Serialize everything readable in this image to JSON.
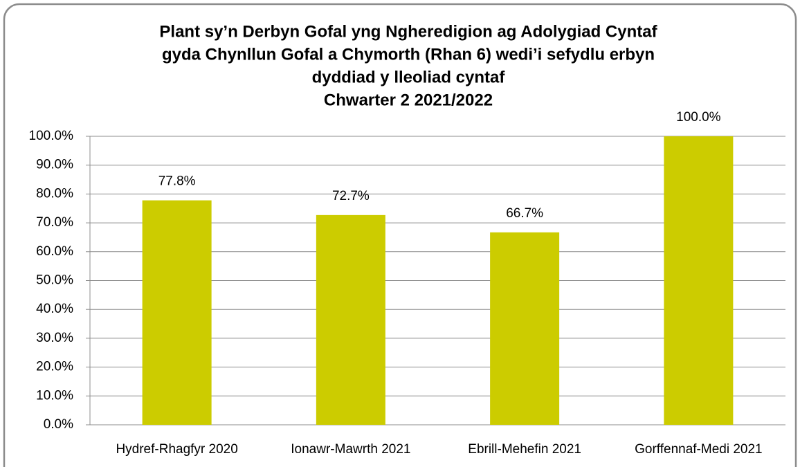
{
  "chart_data": {
    "type": "bar",
    "title": [
      "Plant sy’n Derbyn Gofal yng Ngheredigion ag Adolygiad Cyntaf",
      "gyda Chynllun Gofal a Chymorth (Rhan 6) wedi’i sefydlu erbyn",
      "dyddiad y lleoliad cyntaf",
      "Chwarter 2  2021/2022"
    ],
    "categories": [
      "Hydref-Rhagfyr 2020",
      "Ionawr-Mawrth 2021",
      "Ebrill-Mehefin 2021",
      "Gorffennaf-Medi 2021"
    ],
    "values": [
      77.8,
      72.7,
      66.7,
      100.0
    ],
    "value_labels": [
      "77.8%",
      "72.7%",
      "66.7%",
      "100.0%"
    ],
    "color": "#cccc00",
    "ylim": [
      0,
      100
    ],
    "yticks": [
      {
        "value": 0,
        "label": "0.0%"
      },
      {
        "value": 10,
        "label": "10.0%"
      },
      {
        "value": 20,
        "label": "20.0%"
      },
      {
        "value": 30,
        "label": "30.0%"
      },
      {
        "value": 40,
        "label": "40.0%"
      },
      {
        "value": 50,
        "label": "50.0%"
      },
      {
        "value": 60,
        "label": "60.0%"
      },
      {
        "value": 70,
        "label": "70.0%"
      },
      {
        "value": 80,
        "label": "80.0%"
      },
      {
        "value": 90,
        "label": "90.0%"
      },
      {
        "value": 100,
        "label": "100.0%"
      }
    ],
    "grid": true
  }
}
